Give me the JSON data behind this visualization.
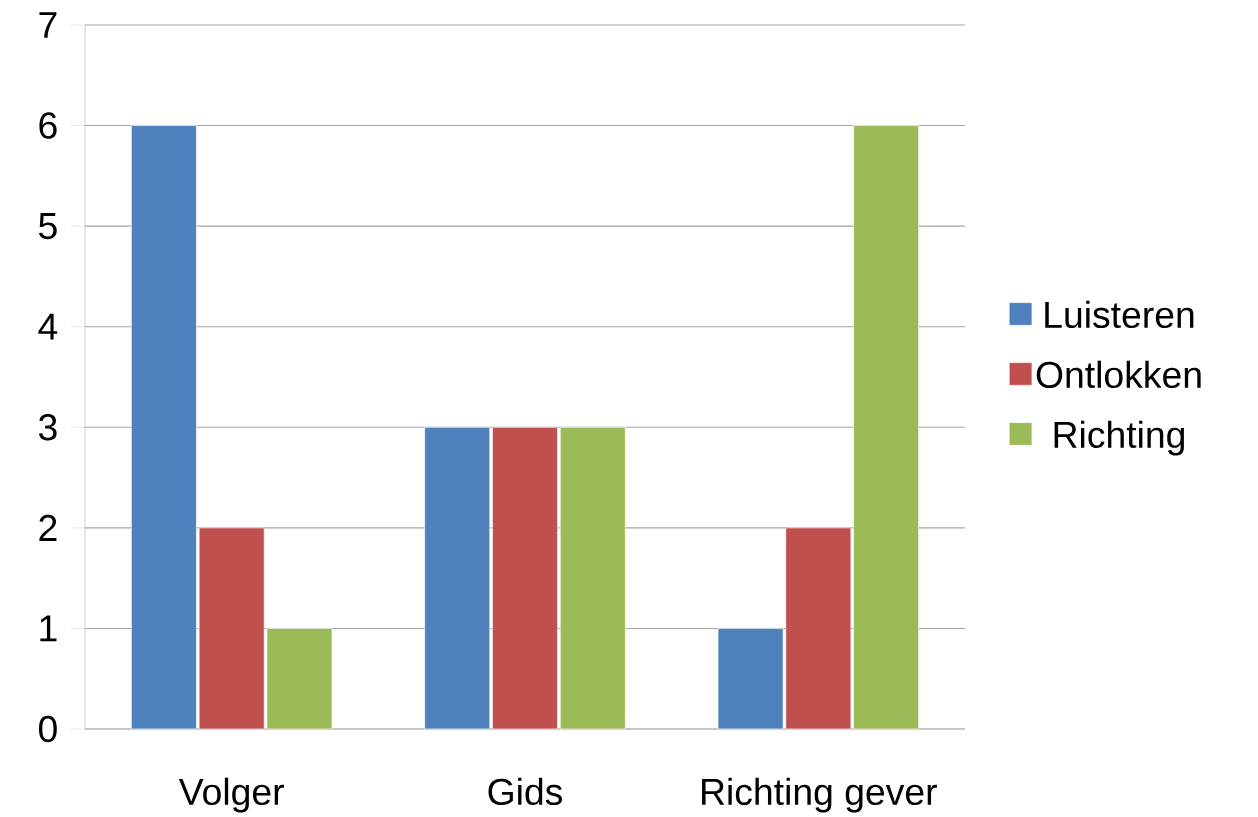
{
  "chart_data": {
    "type": "bar",
    "categories": [
      "Volger",
      "Gids",
      "Richting gever"
    ],
    "series": [
      {
        "name": "Luisteren",
        "color": "#4f81bd",
        "values": [
          6,
          3,
          1
        ]
      },
      {
        "name": "Ontlokken",
        "color": "#c0504d",
        "values": [
          2,
          3,
          2
        ]
      },
      {
        "name": "Richting",
        "color": "#9bbb59",
        "values": [
          1,
          3,
          6
        ]
      }
    ],
    "ylim": [
      0,
      7
    ],
    "yticks": [
      0,
      1,
      2,
      3,
      4,
      5,
      6,
      7
    ],
    "grid": "y",
    "legend": "right"
  }
}
